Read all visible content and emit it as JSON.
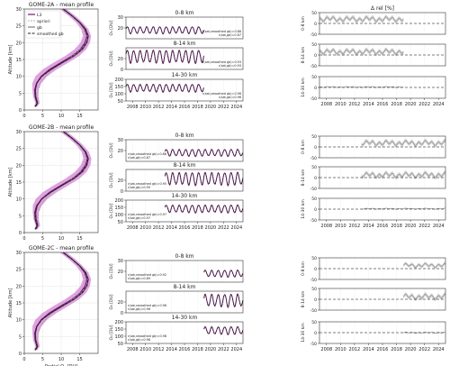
{
  "legend": [
    "L3",
    "apriori",
    "gb",
    "smoothed gb"
  ],
  "colors": {
    "l3": "#6a1b6a",
    "band": "#d98ad9",
    "ground": "#222222",
    "apriori": "#999999",
    "diff_band": "#c8c8c8",
    "diff_line": "#888888"
  },
  "chart_data": [
    {
      "type": "line",
      "title": "GOME-2A - mean profile",
      "xlabel": "",
      "ylabel": "Altitude [km]",
      "xlim": [
        0,
        20
      ],
      "ylim": [
        0,
        30
      ],
      "xticks": [
        0,
        5,
        10,
        15
      ],
      "yticks": [
        0,
        5,
        10,
        15,
        20,
        25,
        30
      ],
      "altitude": [
        1,
        2,
        4,
        6,
        8,
        10,
        12,
        14,
        16,
        18,
        20,
        22,
        24,
        26,
        28,
        30
      ],
      "series": [
        {
          "name": "L3",
          "values": [
            3.0,
            3.6,
            3.1,
            3.0,
            3.4,
            4.6,
            6.8,
            9.8,
            12.9,
            15.2,
            16.5,
            17.0,
            16.4,
            14.9,
            12.9,
            10.5
          ],
          "spread": [
            0.4,
            0.6,
            0.7,
            0.8,
            1.2,
            1.6,
            1.9,
            2.0,
            1.9,
            1.6,
            1.3,
            1.1,
            1.0,
            0.9,
            0.9,
            0.9
          ]
        },
        {
          "name": "apriori",
          "values": [
            3.4,
            3.8,
            3.6,
            3.8,
            4.4,
            5.6,
            7.6,
            10.4,
            13.0,
            15.0,
            16.1,
            16.5,
            16.1,
            14.8,
            12.9,
            10.6
          ]
        },
        {
          "name": "gb",
          "values": [
            2.9,
            3.4,
            2.9,
            2.8,
            3.3,
            4.7,
            7.2,
            10.3,
            13.5,
            15.8,
            17.0,
            17.4,
            16.7,
            15.1,
            13.0,
            10.6
          ]
        },
        {
          "name": "smoothed gb",
          "values": [
            3.0,
            3.5,
            3.0,
            2.9,
            3.4,
            4.8,
            7.2,
            10.2,
            13.3,
            15.6,
            16.9,
            17.3,
            16.6,
            15.0,
            12.9,
            10.5
          ]
        }
      ]
    },
    {
      "type": "line",
      "title": "GOME-2B - mean profile",
      "xlabel": "",
      "ylabel": "Altitude [km]",
      "xlim": [
        0,
        20
      ],
      "ylim": [
        0,
        30
      ],
      "xticks": [
        0,
        5,
        10,
        15
      ],
      "yticks": [
        0,
        5,
        10,
        15,
        20,
        25,
        30
      ],
      "altitude": [
        1,
        2,
        4,
        6,
        8,
        10,
        12,
        14,
        16,
        18,
        20,
        22,
        24,
        26,
        28,
        30
      ],
      "series": [
        {
          "name": "L3",
          "values": [
            3.1,
            3.7,
            3.2,
            3.1,
            3.5,
            4.7,
            6.9,
            9.9,
            13.0,
            15.3,
            16.6,
            17.1,
            16.5,
            15.0,
            13.0,
            10.6
          ],
          "spread": [
            0.4,
            0.6,
            0.7,
            0.8,
            1.2,
            1.6,
            1.9,
            2.0,
            1.9,
            1.6,
            1.3,
            1.1,
            1.0,
            0.9,
            0.9,
            0.9
          ]
        },
        {
          "name": "apriori",
          "values": [
            3.4,
            3.8,
            3.6,
            3.8,
            4.4,
            5.6,
            7.6,
            10.4,
            13.0,
            15.0,
            16.1,
            16.5,
            16.1,
            14.8,
            12.9,
            10.6
          ]
        },
        {
          "name": "gb",
          "values": [
            2.9,
            3.4,
            2.9,
            2.8,
            3.3,
            4.7,
            7.2,
            10.3,
            13.5,
            15.8,
            17.0,
            17.4,
            16.7,
            15.1,
            13.0,
            10.6
          ]
        },
        {
          "name": "smoothed gb",
          "values": [
            3.0,
            3.5,
            3.0,
            2.9,
            3.4,
            4.8,
            7.2,
            10.2,
            13.3,
            15.6,
            16.9,
            17.3,
            16.6,
            15.0,
            12.9,
            10.5
          ]
        }
      ]
    },
    {
      "type": "line",
      "title": "GOME-2C - mean profile",
      "xlabel": "Partial O₃ [DU]",
      "ylabel": "Altitude [km]",
      "xlim": [
        0,
        20
      ],
      "ylim": [
        0,
        30
      ],
      "xticks": [
        0,
        5,
        10,
        15
      ],
      "yticks": [
        0,
        5,
        10,
        15,
        20,
        25,
        30
      ],
      "altitude": [
        1,
        2,
        4,
        6,
        8,
        10,
        12,
        14,
        16,
        18,
        20,
        22,
        24,
        26,
        28,
        30
      ],
      "series": [
        {
          "name": "L3",
          "values": [
            3.0,
            3.6,
            3.1,
            3.0,
            3.4,
            4.6,
            6.8,
            9.8,
            12.9,
            15.2,
            16.5,
            17.0,
            16.4,
            14.9,
            12.9,
            10.5
          ],
          "spread": [
            0.4,
            0.6,
            0.7,
            0.8,
            1.2,
            1.6,
            1.9,
            2.0,
            1.9,
            1.6,
            1.3,
            1.1,
            1.0,
            0.9,
            0.9,
            0.9
          ]
        },
        {
          "name": "apriori",
          "values": [
            3.4,
            3.8,
            3.6,
            3.8,
            4.4,
            5.6,
            7.6,
            10.4,
            13.0,
            15.0,
            16.1,
            16.5,
            16.1,
            14.8,
            12.9,
            10.6
          ]
        },
        {
          "name": "gb",
          "values": [
            2.9,
            3.4,
            2.9,
            2.8,
            3.3,
            4.7,
            7.2,
            10.3,
            13.5,
            15.8,
            17.0,
            17.4,
            16.7,
            15.1,
            13.0,
            10.6
          ]
        },
        {
          "name": "smoothed gb",
          "values": [
            3.0,
            3.5,
            3.0,
            2.9,
            3.4,
            4.8,
            7.2,
            10.2,
            13.3,
            15.6,
            16.9,
            17.3,
            16.6,
            15.0,
            12.9,
            10.5
          ]
        }
      ]
    },
    {
      "type": "line",
      "row": 0,
      "title": "0-8 km",
      "ylabel": "O₃ [DU]",
      "ylim": [
        10,
        30
      ],
      "yticks": [
        20,
        30
      ],
      "xlim": [
        2007,
        2025
      ],
      "data_range": [
        2007,
        2019
      ],
      "mean": 18,
      "amplitude": 3,
      "annotation": [
        "r(sat,smoothed gb)=0.88",
        "r(sat,gb)=0.87"
      ],
      "show_xticks": false
    },
    {
      "type": "line",
      "row": 0,
      "title": "8-14 km",
      "ylabel": "O₃ [DU]",
      "ylim": [
        0,
        40
      ],
      "yticks": [
        0,
        20
      ],
      "xlim": [
        2007,
        2025
      ],
      "data_range": [
        2007,
        2019
      ],
      "mean": 24,
      "amplitude": 11,
      "annotation": [
        "r(sat,smoothed gb)=0.93",
        "r(sat,gb)=0.93"
      ],
      "show_xticks": false
    },
    {
      "type": "line",
      "row": 0,
      "title": "14-30 km",
      "ylabel": "O₃ [DU]",
      "ylim": [
        50,
        200
      ],
      "yticks": [
        50,
        100,
        150,
        200
      ],
      "xlim": [
        2007,
        2025
      ],
      "data_range": [
        2007,
        2019
      ],
      "mean": 140,
      "amplitude": 25,
      "annotation": [
        "r(sat,smoothed gb)=0.96",
        "r(sat,gb)=0.96"
      ],
      "show_xticks": true
    },
    {
      "type": "line",
      "row": 1,
      "title": "0-8 km",
      "ylabel": "O₃ [DU]",
      "ylim": [
        10,
        30
      ],
      "yticks": [
        20,
        30
      ],
      "xlim": [
        2007,
        2025
      ],
      "data_range": [
        2013,
        2025
      ],
      "mean": 18,
      "amplitude": 3,
      "annotation": [
        "r(sat,smoothed gb)=0.88",
        "r(sat,gb)=0.87"
      ],
      "show_xticks": false
    },
    {
      "type": "line",
      "row": 1,
      "title": "8-14 km",
      "ylabel": "O₃ [DU]",
      "ylim": [
        0,
        40
      ],
      "yticks": [
        0,
        20
      ],
      "xlim": [
        2007,
        2025
      ],
      "data_range": [
        2013,
        2025
      ],
      "mean": 23,
      "amplitude": 11,
      "annotation": [
        "r(sat,smoothed gb)=0.95",
        "r(sat,gb)=0.95"
      ],
      "show_xticks": false
    },
    {
      "type": "line",
      "row": 1,
      "title": "14-30 km",
      "ylabel": "O₃ [DU]",
      "ylim": [
        50,
        200
      ],
      "yticks": [
        50,
        100,
        150,
        200
      ],
      "xlim": [
        2007,
        2025
      ],
      "data_range": [
        2013,
        2025
      ],
      "mean": 140,
      "amplitude": 25,
      "annotation": [
        "r(sat,smoothed gb)=0.97",
        "r(sat,gb)=0.97"
      ],
      "show_xticks": true
    },
    {
      "type": "line",
      "row": 2,
      "title": "0-8 km",
      "ylabel": "O₃ [DU]",
      "ylim": [
        10,
        30
      ],
      "yticks": [
        20,
        30
      ],
      "xlim": [
        2007,
        2025
      ],
      "data_range": [
        2019,
        2025
      ],
      "mean": 18,
      "amplitude": 3,
      "annotation": [
        "r(sat,smoothed gb)=0.92",
        "r(sat,gb)=0.89"
      ],
      "show_xticks": false
    },
    {
      "type": "line",
      "row": 2,
      "title": "8-14 km",
      "ylabel": "O₃ [DU]",
      "ylim": [
        0,
        40
      ],
      "yticks": [
        0,
        20
      ],
      "xlim": [
        2007,
        2025
      ],
      "data_range": [
        2019,
        2025
      ],
      "mean": 23,
      "amplitude": 11,
      "annotation": [
        "r(sat,smoothed gb)=0.96",
        "r(sat,gb)=0.96"
      ],
      "show_xticks": false
    },
    {
      "type": "line",
      "row": 2,
      "title": "14-30 km",
      "ylabel": "O₃ [DU]",
      "ylim": [
        50,
        200
      ],
      "yticks": [
        50,
        100,
        150,
        200
      ],
      "xlim": [
        2007,
        2025
      ],
      "data_range": [
        2019,
        2025
      ],
      "mean": 140,
      "amplitude": 25,
      "annotation": [
        "r(sat,smoothed gb)=0.98",
        "r(sat,gb)=0.98"
      ],
      "show_xticks": true
    },
    {
      "type": "area",
      "row": 0,
      "title": "Δ rel [%]",
      "panels": [
        {
          "ylabel": "0-8 km",
          "ylim": [
            -50,
            50
          ],
          "yticks": [
            -50,
            0,
            50
          ],
          "mean": 20,
          "amplitude": 15
        },
        {
          "ylabel": "8-14 km",
          "ylim": [
            -50,
            50
          ],
          "yticks": [
            -50,
            0,
            50
          ],
          "mean": 15,
          "amplitude": 15
        },
        {
          "ylabel": "14-30 km",
          "ylim": [
            -50,
            50
          ],
          "yticks": [
            -50,
            0,
            50
          ],
          "mean": 2,
          "amplitude": 3
        }
      ],
      "xlim": [
        2007,
        2025
      ],
      "data_range": [
        2007,
        2019
      ]
    },
    {
      "type": "area",
      "row": 1,
      "title": "",
      "panels": [
        {
          "ylabel": "0-8 km",
          "ylim": [
            -50,
            50
          ],
          "yticks": [
            -50,
            0,
            50
          ],
          "mean": 18,
          "amplitude": 15
        },
        {
          "ylabel": "8-14 km",
          "ylim": [
            -50,
            50
          ],
          "yticks": [
            -50,
            0,
            50
          ],
          "mean": 12,
          "amplitude": 15
        },
        {
          "ylabel": "14-30 km",
          "ylim": [
            -50,
            50
          ],
          "yticks": [
            -50,
            0,
            50
          ],
          "mean": 2,
          "amplitude": 3
        }
      ],
      "xlim": [
        2007,
        2025
      ],
      "data_range": [
        2013,
        2025
      ]
    },
    {
      "type": "area",
      "row": 2,
      "title": "",
      "panels": [
        {
          "ylabel": "0-8 km",
          "ylim": [
            -50,
            50
          ],
          "yticks": [
            -50,
            0,
            50
          ],
          "mean": 15,
          "amplitude": 12
        },
        {
          "ylabel": "8-14 km",
          "ylim": [
            -50,
            50
          ],
          "yticks": [
            -50,
            0,
            50
          ],
          "mean": 12,
          "amplitude": 15
        },
        {
          "ylabel": "14-30 km",
          "ylim": [
            -50,
            50
          ],
          "yticks": [
            -50,
            0,
            50
          ],
          "mean": 0,
          "amplitude": 3
        }
      ],
      "xlim": [
        2007,
        2025
      ],
      "data_range": [
        2019,
        2025
      ]
    }
  ],
  "year_ticks": [
    2008,
    2010,
    2012,
    2014,
    2016,
    2018,
    2020,
    2022,
    2024
  ]
}
